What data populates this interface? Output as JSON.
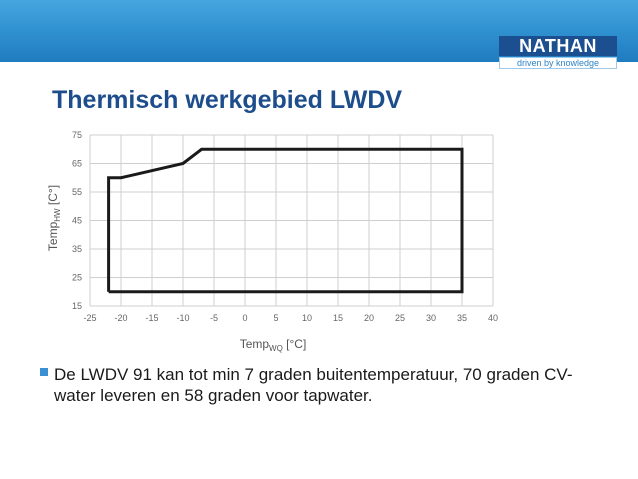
{
  "slide": {
    "title": "Thermisch werkgebied LWDV",
    "logo": {
      "name": "NATHAN",
      "tagline": "driven by knowledge"
    },
    "bullet": "De LWDV 91 kan tot min 7 graden buitentemperatuur, 70 graden CV-water leveren en 58 graden voor tapwater."
  },
  "colors": {
    "band": "#2e8fcf",
    "title": "#1e4d8c",
    "logo": "#1b4f8f",
    "bullet": "#3b8fd3",
    "line": "#1a1a1a",
    "grid": "#cfcfcf"
  },
  "chart_data": {
    "type": "line",
    "xlabel": {
      "main": "Temp",
      "sub": "WQ",
      "unit": " [°C]"
    },
    "ylabel": {
      "main": "Temp",
      "sub": "HW",
      "unit": " [C°]"
    },
    "xlim": [
      -25,
      40
    ],
    "ylim": [
      15,
      75
    ],
    "xticks": [
      -25,
      -20,
      -15,
      -10,
      -5,
      0,
      5,
      10,
      15,
      20,
      25,
      30,
      35,
      40
    ],
    "yticks": [
      15,
      25,
      35,
      45,
      55,
      65,
      75
    ],
    "x_tick_labels": [
      "-25",
      "-20",
      "-15",
      "-10",
      "-5",
      "0",
      "5",
      "10",
      "15",
      "20",
      "25",
      "30",
      "35",
      "40"
    ],
    "y_tick_labels": [
      "15",
      "25",
      "35",
      "45",
      "55",
      "65",
      "75"
    ],
    "grid": true,
    "series": [
      {
        "x": [
          -22,
          -22,
          -20,
          -10,
          -7,
          35,
          35,
          -22
        ],
        "y": [
          20,
          60,
          60,
          65,
          70,
          70,
          20,
          20
        ]
      }
    ]
  }
}
